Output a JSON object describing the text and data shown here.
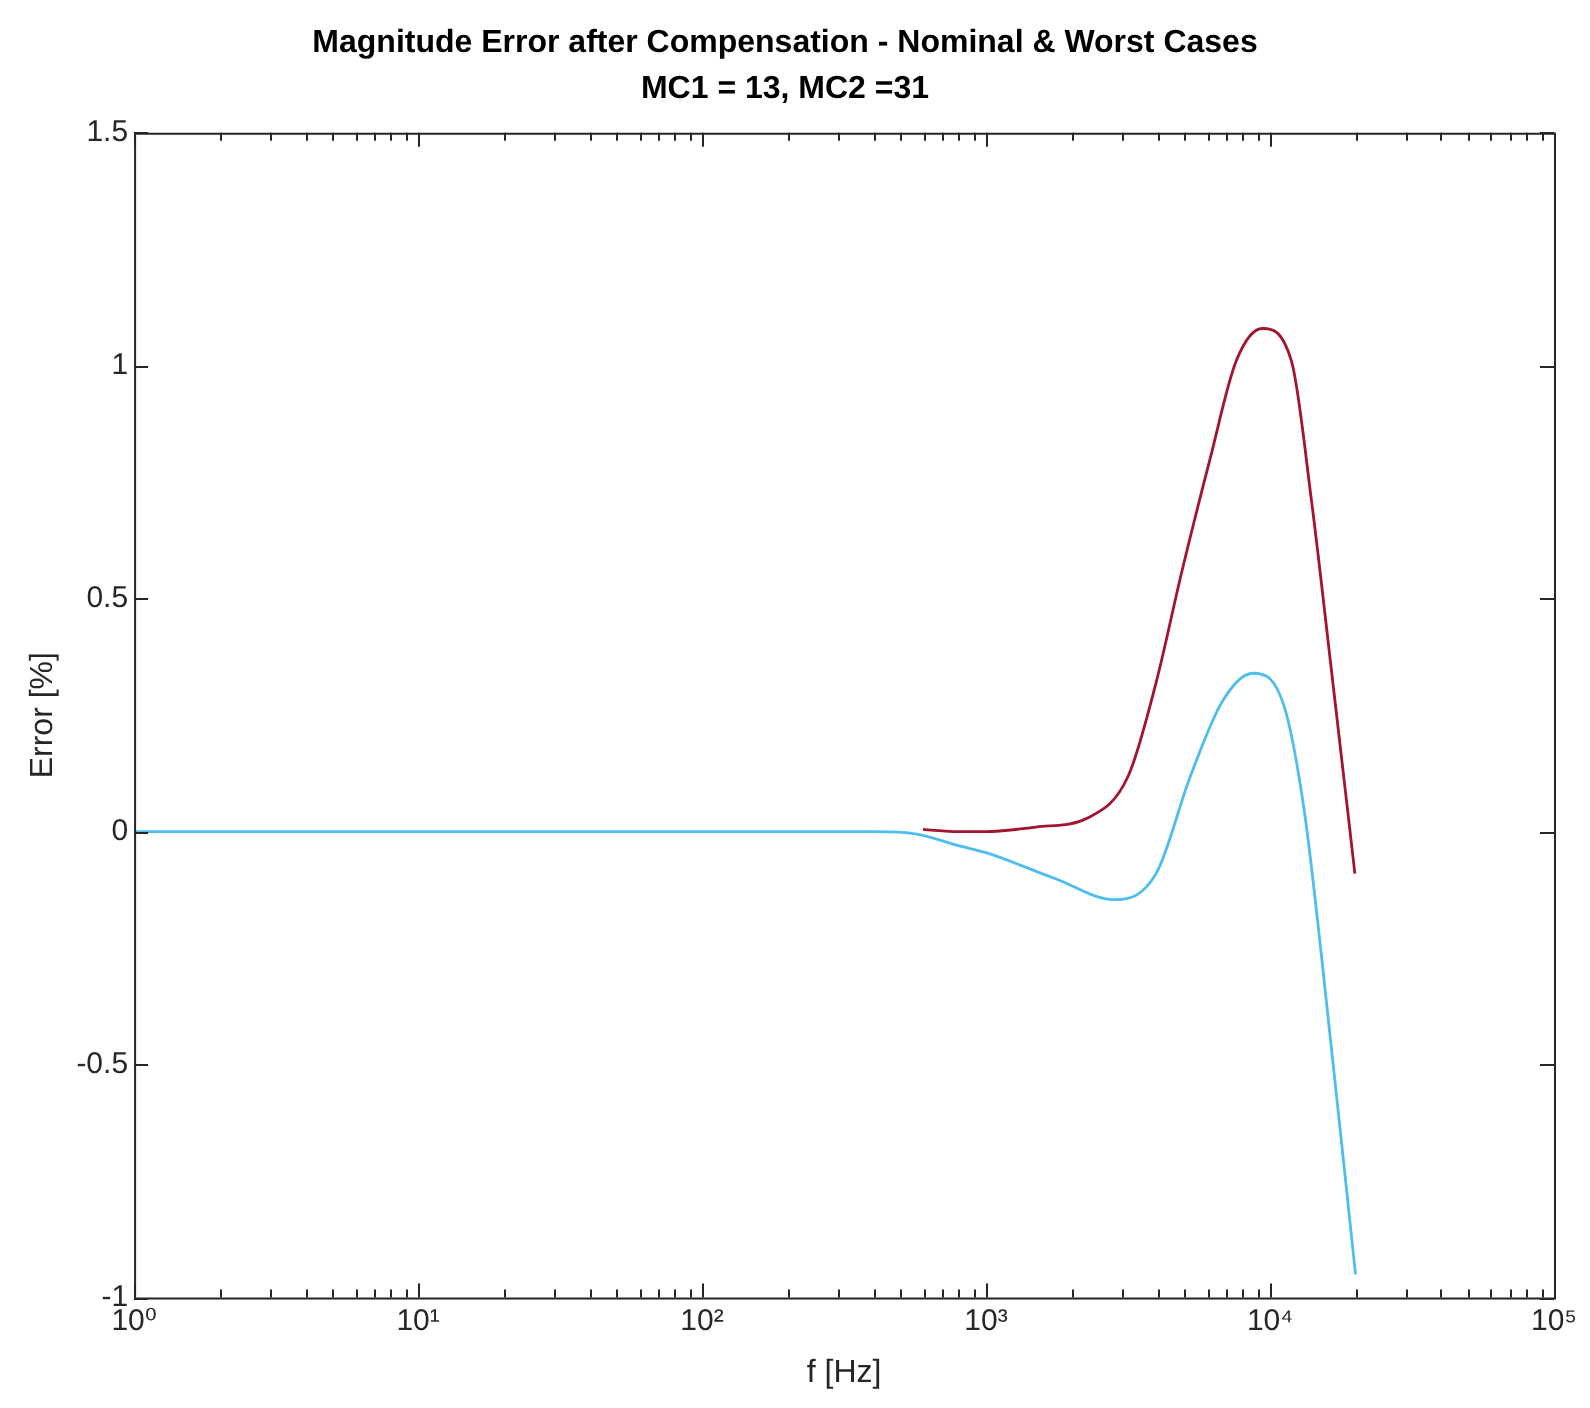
{
  "chart_data": {
    "type": "line",
    "title": "Magnitude Error after Compensation - Nominal & Worst Cases",
    "subtitle": "MC1 = 13, MC2 =31",
    "xlabel": "f [Hz]",
    "ylabel": "Error [%]",
    "log": "x",
    "grid": false,
    "legend": false,
    "marker": "none",
    "line_style": "solid",
    "xlim": [
      1,
      100000
    ],
    "ylim": [
      -1,
      1.5
    ],
    "xticks": [
      {
        "value": 1,
        "label": "10⁰"
      },
      {
        "value": 2,
        "label": null
      },
      {
        "value": 3,
        "label": null
      },
      {
        "value": 4,
        "label": null
      },
      {
        "value": 5,
        "label": null
      },
      {
        "value": 6,
        "label": null
      },
      {
        "value": 7,
        "label": null
      },
      {
        "value": 8,
        "label": null
      },
      {
        "value": 9,
        "label": null
      },
      {
        "value": 10,
        "label": "10¹"
      },
      {
        "value": 20,
        "label": null
      },
      {
        "value": 30,
        "label": null
      },
      {
        "value": 40,
        "label": null
      },
      {
        "value": 50,
        "label": null
      },
      {
        "value": 60,
        "label": null
      },
      {
        "value": 70,
        "label": null
      },
      {
        "value": 80,
        "label": null
      },
      {
        "value": 90,
        "label": null
      },
      {
        "value": 100,
        "label": "10²"
      },
      {
        "value": 200,
        "label": null
      },
      {
        "value": 300,
        "label": null
      },
      {
        "value": 400,
        "label": null
      },
      {
        "value": 500,
        "label": null
      },
      {
        "value": 600,
        "label": null
      },
      {
        "value": 700,
        "label": null
      },
      {
        "value": 800,
        "label": null
      },
      {
        "value": 900,
        "label": null
      },
      {
        "value": 1000,
        "label": "10³"
      },
      {
        "value": 2000,
        "label": null
      },
      {
        "value": 3000,
        "label": null
      },
      {
        "value": 4000,
        "label": null
      },
      {
        "value": 5000,
        "label": null
      },
      {
        "value": 6000,
        "label": null
      },
      {
        "value": 7000,
        "label": null
      },
      {
        "value": 8000,
        "label": null
      },
      {
        "value": 9000,
        "label": null
      },
      {
        "value": 10000,
        "label": "10⁴"
      },
      {
        "value": 20000,
        "label": null
      },
      {
        "value": 30000,
        "label": null
      },
      {
        "value": 40000,
        "label": null
      },
      {
        "value": 50000,
        "label": null
      },
      {
        "value": 60000,
        "label": null
      },
      {
        "value": 70000,
        "label": null
      },
      {
        "value": 80000,
        "label": null
      },
      {
        "value": 90000,
        "label": null
      },
      {
        "value": 100000,
        "label": "10⁵"
      }
    ],
    "yticks": [
      -1,
      -0.5,
      0,
      0.5,
      1,
      1.5
    ],
    "series": [
      {
        "color": "#4dbeee",
        "x": [
          1,
          10,
          100,
          400,
          570,
          800,
          1000,
          1740,
          2830,
          3970,
          5250,
          6800,
          8700,
          11200,
          13200,
          15200,
          20000
        ],
        "values": [
          0,
          0,
          0,
          0,
          -0.005,
          -0.03,
          -0.045,
          -0.1,
          -0.146,
          -0.09,
          0.12,
          0.28,
          0.34,
          0.27,
          0.045,
          -0.27,
          -0.95
        ]
      },
      {
        "color": "#a2142f",
        "x": [
          600,
          800,
          1000,
          1500,
          2290,
          3170,
          3970,
          4900,
          6150,
          7600,
          9400,
          11900,
          14000,
          16500,
          19900
        ],
        "values": [
          0.005,
          0,
          0,
          0.01,
          0.03,
          0.12,
          0.32,
          0.56,
          0.8,
          1.01,
          1.08,
          1.01,
          0.71,
          0.34,
          -0.09
        ]
      }
    ]
  }
}
